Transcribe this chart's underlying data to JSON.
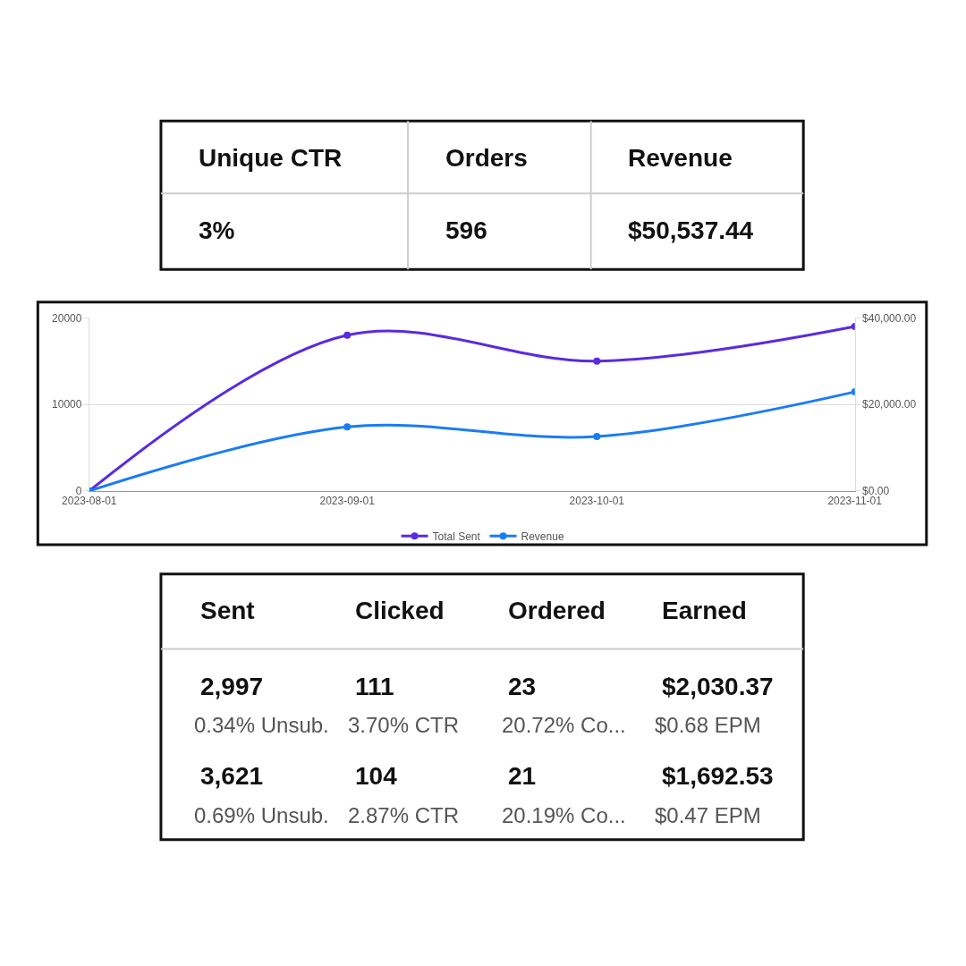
{
  "chart_data": [
    {
      "type": "other",
      "categories": [
        "Unique CTR",
        "Orders",
        "Revenue"
      ],
      "annotations": [
        "3%",
        "596",
        "$50,537.44"
      ]
    },
    {
      "type": "line",
      "x": [
        "2023-08-01",
        "2023-09-01",
        "2023-10-01",
        "2023-11-01"
      ],
      "series": [
        {
          "name": "Total Sent",
          "color": "#5b2be0",
          "values": [
            0,
            18000,
            15000,
            19000
          ]
        },
        {
          "name": "Revenue",
          "color": "#1a7cf5",
          "axis": "y2",
          "values": [
            0,
            14800,
            12600,
            22900
          ]
        }
      ],
      "xlim": [
        "2023-08-01",
        "2023-11-01"
      ],
      "xticks": [
        {
          "value": "2023-08-01",
          "label": "2023-08-01"
        },
        {
          "value": "2023-09-01",
          "label": "2023-09-01"
        },
        {
          "value": "2023-10-01",
          "label": "2023-10-01"
        },
        {
          "value": "2023-11-01",
          "label": "2023-11-01"
        }
      ],
      "ylim": [
        0,
        20000
      ],
      "yticks": [
        0,
        10000,
        20000
      ],
      "y2lim": [
        0,
        40000
      ],
      "y2ticks": [
        {
          "value": 0,
          "label": "$0.00"
        },
        {
          "value": 20000,
          "label": "$20,000.00"
        },
        {
          "value": 40000,
          "label": "$40,000.00"
        }
      ],
      "grid": "y",
      "marker": "circle",
      "legend": "bottom"
    },
    {
      "type": "other",
      "categories": [
        "Sent",
        "Clicked",
        "Ordered",
        "Earned"
      ],
      "annotations": [
        "2,997",
        "111",
        "23",
        "$2,030.37",
        "0.34% Unsub.",
        "3.70% CTR",
        "20.72% Co...",
        "$0.68 EPM",
        "3,621",
        "104",
        "21",
        "$1,692.53",
        "0.69% Unsub.",
        "2.87% CTR",
        "20.19% Co...",
        "$0.47 EPM"
      ]
    }
  ]
}
